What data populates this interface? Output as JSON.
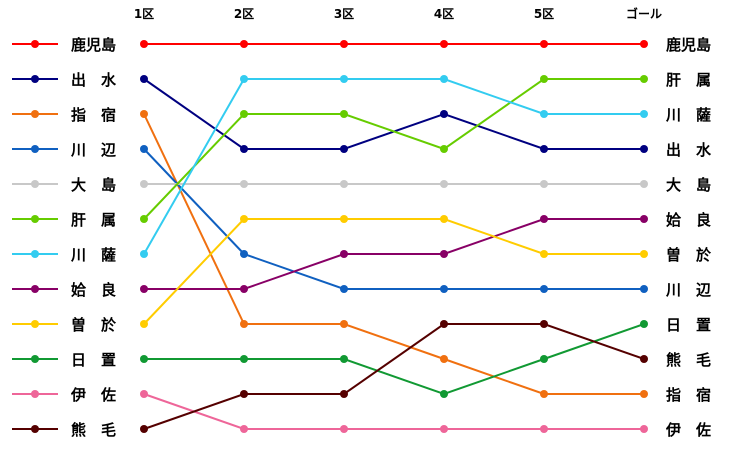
{
  "chart_data": {
    "type": "line",
    "title": "",
    "xlabel": "",
    "ylabel": "",
    "categories": [
      "1区",
      "2区",
      "3区",
      "4区",
      "5区",
      "ゴール"
    ],
    "y_axis": "rank (1 = top, 12 = bottom)",
    "start_labels": [
      "鹿児島",
      "出　水",
      "指　宿",
      "川　辺",
      "大　島",
      "肝　属",
      "川　薩",
      "姶　良",
      "曽　於",
      "日　置",
      "伊　佐",
      "熊　毛"
    ],
    "end_labels": [
      "鹿児島",
      "肝　属",
      "川　薩",
      "出　水",
      "大　島",
      "姶　良",
      "曽　於",
      "川　辺",
      "日　置",
      "熊　毛",
      "指　宿",
      "伊　佐"
    ],
    "series": [
      {
        "name": "鹿児島",
        "color": "#ff0000",
        "values": [
          1,
          1,
          1,
          1,
          1,
          1
        ]
      },
      {
        "name": "出　水",
        "color": "#000080",
        "values": [
          2,
          4,
          4,
          3,
          4,
          4
        ]
      },
      {
        "name": "指　宿",
        "color": "#f07010",
        "values": [
          3,
          9,
          9,
          10,
          11,
          11
        ]
      },
      {
        "name": "川　辺",
        "color": "#1060c0",
        "values": [
          4,
          7,
          8,
          8,
          8,
          8
        ]
      },
      {
        "name": "大　島",
        "color": "#c8c8c8",
        "values": [
          5,
          5,
          5,
          5,
          5,
          5
        ]
      },
      {
        "name": "肝　属",
        "color": "#66cc00",
        "values": [
          6,
          3,
          3,
          4,
          2,
          2
        ]
      },
      {
        "name": "川　薩",
        "color": "#33ccf0",
        "values": [
          7,
          2,
          2,
          2,
          3,
          3
        ]
      },
      {
        "name": "姶　良",
        "color": "#880066",
        "values": [
          8,
          8,
          7,
          7,
          6,
          6
        ]
      },
      {
        "name": "曽　於",
        "color": "#ffcc00",
        "values": [
          9,
          6,
          6,
          6,
          7,
          7
        ]
      },
      {
        "name": "日　置",
        "color": "#119933",
        "values": [
          10,
          10,
          10,
          11,
          10,
          9
        ]
      },
      {
        "name": "伊　佐",
        "color": "#ee6699",
        "values": [
          11,
          12,
          12,
          12,
          12,
          12
        ]
      },
      {
        "name": "熊　毛",
        "color": "#550000",
        "values": [
          12,
          11,
          11,
          9,
          9,
          10
        ]
      }
    ],
    "grid": false,
    "legend": "left"
  }
}
